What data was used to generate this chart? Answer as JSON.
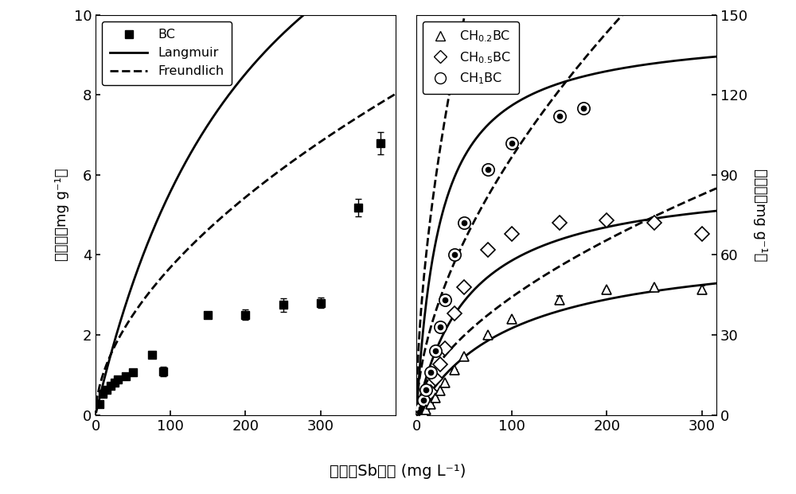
{
  "left_panel": {
    "BC_x": [
      5,
      10,
      15,
      20,
      25,
      30,
      40,
      50,
      75,
      90,
      150,
      200,
      250,
      300,
      350,
      380
    ],
    "BC_y": [
      0.28,
      0.52,
      0.62,
      0.72,
      0.8,
      0.88,
      0.97,
      1.07,
      1.5,
      1.08,
      2.5,
      2.5,
      2.75,
      2.8,
      5.18,
      6.8
    ],
    "BC_yerr": [
      0.0,
      0.0,
      0.0,
      0.0,
      0.0,
      0.0,
      0.07,
      0.07,
      0.0,
      0.12,
      0.0,
      0.13,
      0.17,
      0.13,
      0.22,
      0.28
    ],
    "langmuir_params": {
      "qmax": 18.0,
      "KL": 0.0045
    },
    "freundlich_params": {
      "KF": 0.28,
      "n": 0.56
    },
    "ylim": [
      0,
      10
    ],
    "xlim": [
      0,
      400
    ],
    "yticks": [
      0,
      2,
      4,
      6,
      8,
      10
    ],
    "xticks": [
      0,
      100,
      200,
      300
    ]
  },
  "right_panel": {
    "CH02_x": [
      3,
      5,
      7,
      10,
      15,
      20,
      25,
      30,
      40,
      50,
      75,
      100,
      150,
      200,
      250,
      300
    ],
    "CH02_y": [
      0.3,
      0.6,
      1.2,
      2.0,
      4.0,
      6.5,
      9.0,
      12.0,
      17.0,
      22.0,
      30.0,
      36.0,
      43.0,
      47.0,
      48.0,
      47.0
    ],
    "CH02_yerr": [
      0,
      0,
      0,
      0,
      0,
      0,
      0,
      0,
      0,
      0,
      0,
      0,
      1.5,
      0,
      0,
      1.5
    ],
    "CH05_x": [
      3,
      5,
      7,
      10,
      15,
      20,
      25,
      30,
      40,
      50,
      75,
      100,
      150,
      200,
      250,
      300
    ],
    "CH05_y": [
      0.5,
      1.2,
      2.5,
      4.5,
      8.5,
      13.5,
      19.0,
      25.0,
      38.0,
      48.0,
      62.0,
      68.0,
      72.0,
      73.0,
      72.0,
      68.0
    ],
    "CH05_yerr": [
      0,
      0,
      0,
      0,
      0,
      0,
      0,
      0,
      0,
      0,
      0,
      0,
      0,
      0,
      0,
      0
    ],
    "CH1_x": [
      3,
      5,
      7,
      10,
      15,
      20,
      25,
      30,
      40,
      50,
      75,
      100,
      150,
      175
    ],
    "CH1_y": [
      1.0,
      2.5,
      5.5,
      9.5,
      16.0,
      24.0,
      33.0,
      43.0,
      60.0,
      72.0,
      92.0,
      102.0,
      112.0,
      115.0
    ],
    "CH1_yerr": [
      0,
      0,
      0,
      0,
      0,
      0,
      0,
      0,
      0,
      0,
      0,
      0,
      0,
      0
    ],
    "langmuir_CH02_params": {
      "qmax": 65.0,
      "KL": 0.01
    },
    "freundlich_CH02_params": {
      "KF": 3.2,
      "n": 0.57
    },
    "langmuir_CH05_params": {
      "qmax": 90.0,
      "KL": 0.018
    },
    "freundlich_CH05_params": {
      "KF": 7.0,
      "n": 0.57
    },
    "langmuir_CH1_params": {
      "qmax": 145.0,
      "KL": 0.04
    },
    "freundlich_CH1_params": {
      "KF": 16.0,
      "n": 0.57
    },
    "ylim": [
      0,
      150
    ],
    "xlim": [
      0,
      315
    ],
    "yticks": [
      0,
      30,
      60,
      90,
      120,
      150
    ],
    "xticks": [
      0,
      100,
      200,
      300
    ]
  },
  "xlabel": "溶液中Sb含量 (mg L⁻¹)",
  "ylabel_left": "吸附量（mg g⁻¹）",
  "ylabel_right": "吸附量（mg g⁻¹）",
  "legend_left": {
    "BC_label": "BC",
    "langmuir_label": "Langmuir",
    "freundlich_label": "Freundlich"
  },
  "legend_right": {
    "CH02_label": "CH$_{0.2}$BC",
    "CH05_label": "CH$_{0.5}$BC",
    "CH1_label": "CH$_{1}$BC"
  }
}
